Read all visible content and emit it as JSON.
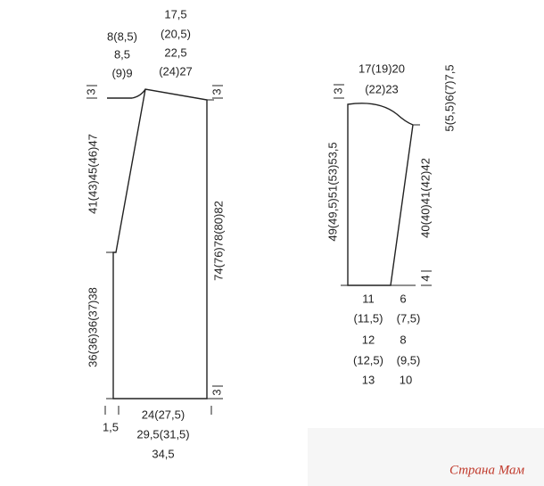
{
  "front": {
    "neck_width": [
      "8(8,5)",
      "8,5",
      "(9)9"
    ],
    "shoulder_width": [
      "17,5",
      "(20,5)",
      "22,5",
      "(24)27"
    ],
    "neck_depth": "3",
    "shoulder_drop": "3",
    "hem_depth": "3",
    "upper_front_height": "41(43)45(46)47",
    "lower_front_height": "36(36)36(37)38",
    "total_length": "74(76)78(80)82",
    "front_band": "1,5",
    "bottom_width": [
      "24(27,5)",
      "29,5(31,5)",
      "34,5"
    ]
  },
  "sleeve": {
    "top_width": [
      "17(19)20",
      "(22)23"
    ],
    "cap_depth_left": "3",
    "cap_height": "5(5,5)6(7)7,5",
    "length": "49(49,5)51(53)53,5",
    "side_length": "40(40)41(42)42",
    "cuff_depth": "4",
    "cuff_width": [
      "11",
      "(11,5)",
      "12",
      "(12,5)",
      "13"
    ],
    "cuff_offset": [
      "6",
      "(7,5)",
      "8",
      "(9,5)",
      "10"
    ]
  },
  "watermark": "Страна Мам"
}
